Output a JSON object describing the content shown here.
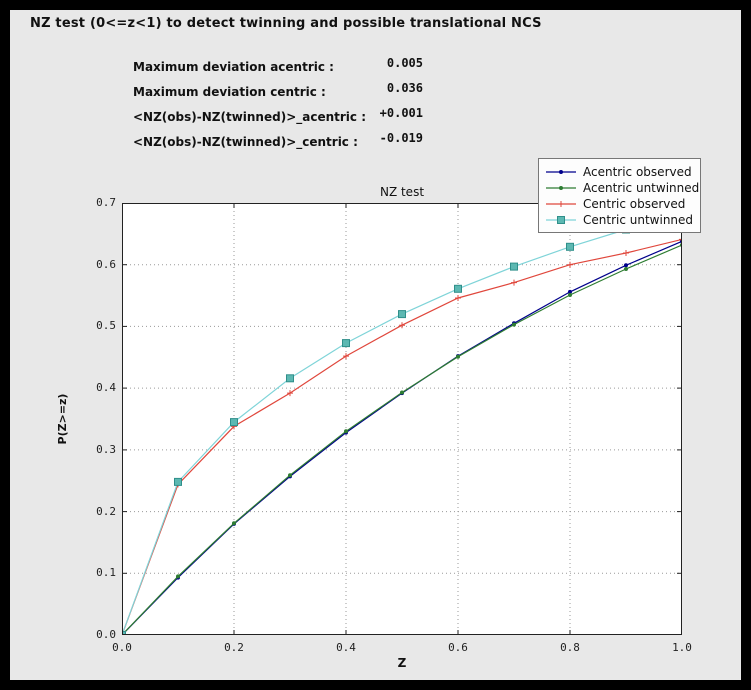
{
  "header": {
    "title": "NZ test (0<=z<1) to detect twinning and possible translational NCS"
  },
  "stats": {
    "rows": [
      {
        "label": "Maximum deviation acentric :",
        "value": "0.005"
      },
      {
        "label": "Maximum deviation centric :",
        "value": "0.036"
      },
      {
        "label": "<NZ(obs)-NZ(twinned)>_acentric :",
        "value": "+0.001"
      },
      {
        "label": "<NZ(obs)-NZ(twinned)>_centric :",
        "value": "-0.019"
      }
    ]
  },
  "colors": {
    "panel_background": "#e8e8e8",
    "frame": "#000000",
    "plot_background": "#ffffff",
    "acentric_observed": "#00008b",
    "acentric_untwinned": "#2e7d32",
    "centric_observed": "#e0473c",
    "centric_untwinned": "#7fd4d8"
  },
  "chart_data": {
    "type": "line",
    "title": "NZ test",
    "xlabel": "Z",
    "ylabel": "P(Z>=z)",
    "xlim": [
      0.0,
      1.0
    ],
    "ylim": [
      0.0,
      0.7
    ],
    "xticks": [
      0.0,
      0.2,
      0.4,
      0.6,
      0.8,
      1.0
    ],
    "yticks": [
      0.0,
      0.1,
      0.2,
      0.3,
      0.4,
      0.5,
      0.6,
      0.7
    ],
    "grid": true,
    "legend_position": "upper right",
    "x": [
      0.0,
      0.1,
      0.2,
      0.3,
      0.4,
      0.5,
      0.6,
      0.7,
      0.8,
      0.9,
      1.0
    ],
    "series": [
      {
        "name": "Acentric observed",
        "color": "#00008b",
        "marker": "circle",
        "values": [
          0.0,
          0.093,
          0.18,
          0.257,
          0.328,
          0.392,
          0.452,
          0.505,
          0.556,
          0.599,
          0.638
        ]
      },
      {
        "name": "Acentric untwinned",
        "color": "#2e7d32",
        "marker": "circle",
        "values": [
          0.0,
          0.095,
          0.181,
          0.259,
          0.33,
          0.393,
          0.451,
          0.503,
          0.551,
          0.593,
          0.632
        ]
      },
      {
        "name": "Centric observed",
        "color": "#e0473c",
        "marker": "plus",
        "values": [
          0.0,
          0.244,
          0.338,
          0.392,
          0.452,
          0.502,
          0.546,
          0.571,
          0.6,
          0.619,
          0.641
        ]
      },
      {
        "name": "Centric untwinned",
        "color": "#7fd4d8",
        "marker": "square",
        "marker_fill": "#5cb8b2",
        "marker_edge": "#2f8f8a",
        "values": [
          0.0,
          0.248,
          0.345,
          0.416,
          0.473,
          0.52,
          0.561,
          0.597,
          0.629,
          0.657,
          0.683
        ]
      }
    ]
  }
}
